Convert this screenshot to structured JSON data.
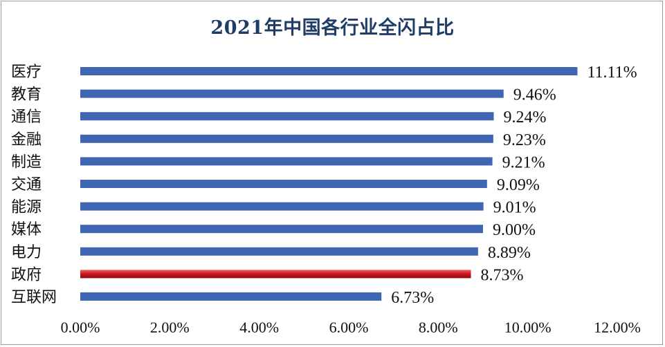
{
  "chart_data": {
    "type": "bar",
    "orientation": "horizontal",
    "title": "2021年中国各行业全闪占比",
    "categories": [
      "医疗",
      "教育",
      "通信",
      "金融",
      "制造",
      "交通",
      "能源",
      "媒体",
      "电力",
      "政府",
      "互联网"
    ],
    "values": [
      11.11,
      9.46,
      9.24,
      9.23,
      9.21,
      9.09,
      9.01,
      9.0,
      8.89,
      8.73,
      6.73
    ],
    "value_labels": [
      "11.11%",
      "9.46%",
      "9.24%",
      "9.23%",
      "9.21%",
      "9.09%",
      "9.01%",
      "9.00%",
      "8.89%",
      "8.73%",
      "6.73%"
    ],
    "highlight_category": "政府",
    "colors": {
      "bar": "#3e66b2",
      "highlight": "#c8161d",
      "title": "#1f3c66"
    },
    "xlim": [
      0,
      12
    ],
    "xticks": [
      0,
      2,
      4,
      6,
      8,
      10,
      12
    ],
    "xtick_labels": [
      "0.00%",
      "2.00%",
      "4.00%",
      "6.00%",
      "8.00%",
      "10.00%",
      "12.00%"
    ],
    "grid": false,
    "legend": "none"
  }
}
